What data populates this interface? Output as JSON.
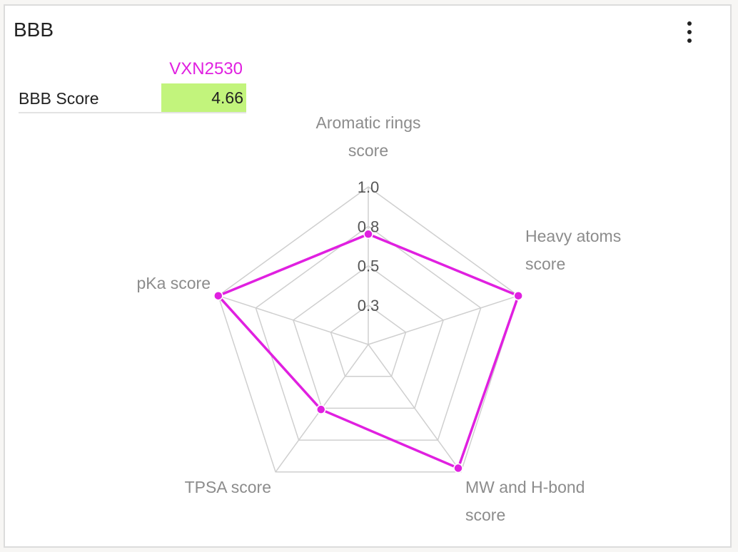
{
  "panel": {
    "title": "BBB"
  },
  "table": {
    "compound": "VXN2530",
    "compound_color": "#e020e0",
    "row_label": "BBB Score",
    "row_value": "4.66",
    "value_bg": "#c2f47c"
  },
  "chart_data": {
    "type": "radar",
    "axes": [
      {
        "label": [
          "Aromatic rings",
          "score"
        ],
        "value": 0.7
      },
      {
        "label": [
          "Heavy atoms",
          "score"
        ],
        "value": 1.0
      },
      {
        "label": [
          "MW and H-bond",
          "score"
        ],
        "value": 0.97
      },
      {
        "label": [
          "TPSA score"
        ],
        "value": 0.51
      },
      {
        "label": [
          "pKa score"
        ],
        "value": 1.0
      }
    ],
    "range": [
      0,
      1
    ],
    "ticks": [
      0.25,
      0.5,
      0.75,
      1.0
    ],
    "tick_labels": [
      "0.3",
      "0.5",
      "0.8",
      "1.0"
    ],
    "series_color": "#e020e0",
    "grid": true
  }
}
